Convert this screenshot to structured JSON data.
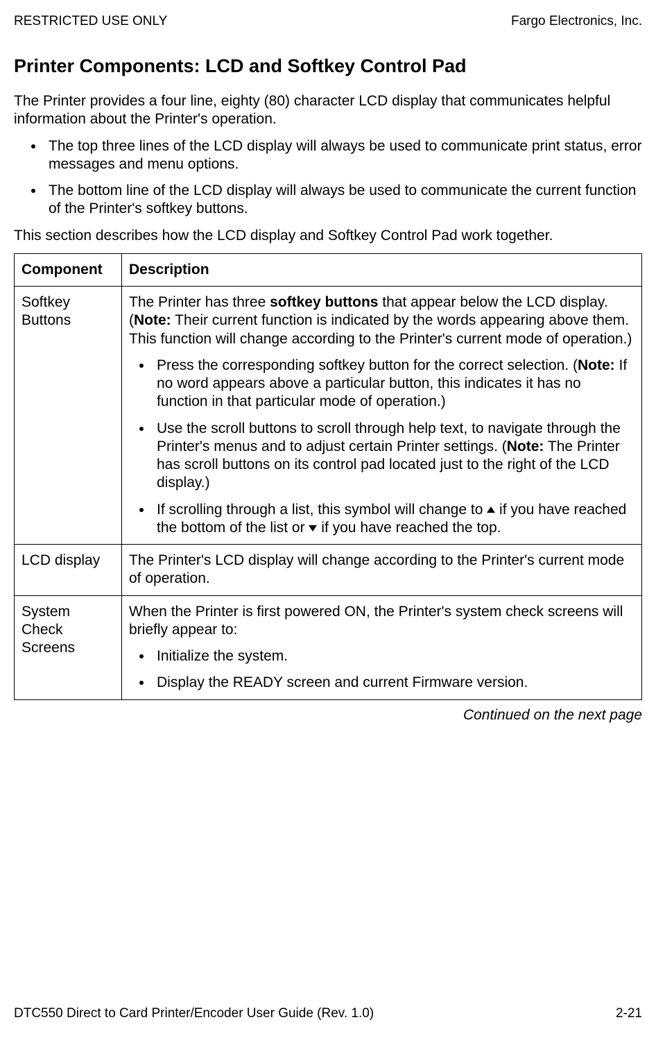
{
  "header": {
    "left": "RESTRICTED USE ONLY",
    "right": "Fargo Electronics, Inc."
  },
  "section_title": "Printer Components:  LCD and Softkey Control Pad",
  "intro": "The Printer provides a four line, eighty (80) character LCD display that communicates helpful information about the Printer's operation.",
  "intro_bullets": [
    "The top three lines of the LCD display will always be used to communicate print status, error messages and menu options.",
    "The bottom line of the LCD display will always be used to communicate the current function of the Printer's softkey buttons."
  ],
  "intro_after": "This section describes how the LCD display and Softkey Control Pad work together.",
  "table": {
    "headers": {
      "c1": "Component",
      "c2": "Description"
    },
    "rows": {
      "softkey": {
        "component": "Softkey Buttons",
        "desc_lead_a": "The Printer has three ",
        "desc_lead_bold": "softkey buttons",
        "desc_lead_b": " that appear below the LCD display. (",
        "desc_lead_note": "Note:",
        "desc_lead_c": "  Their current function is indicated by the words appearing above them. This function will change according to the Printer's current mode of operation.)",
        "b1_a": "Press the corresponding softkey button for the correct selection. (",
        "b1_note": "Note:",
        "b1_b": "  If no word appears above a particular button, this indicates it has no function in that particular mode of operation.)",
        "b2_a": "Use the scroll buttons to scroll through help text, to navigate through the Printer's menus and to adjust certain Printer settings. (",
        "b2_note": "Note:",
        "b2_b": "  The Printer has scroll buttons on its control pad located just to the right of the LCD display.)",
        "b3_a": "If scrolling through a list, this symbol will change to ",
        "b3_b": " if you have reached the bottom of the list or ",
        "b3_c": " if you have reached the top."
      },
      "lcd": {
        "component": "LCD display",
        "desc": "The Printer's LCD display will change according to the Printer's current mode of operation."
      },
      "system": {
        "component": "System Check Screens",
        "desc": "When the Printer is first powered ON, the Printer's system check screens will briefly appear to:",
        "b1": "Initialize the system.",
        "b2": "Display the READY screen and current Firmware version."
      }
    }
  },
  "continued": "Continued on the next page",
  "footer": {
    "left": "DTC550 Direct to Card Printer/Encoder User Guide (Rev. 1.0)",
    "right": "2-21"
  }
}
